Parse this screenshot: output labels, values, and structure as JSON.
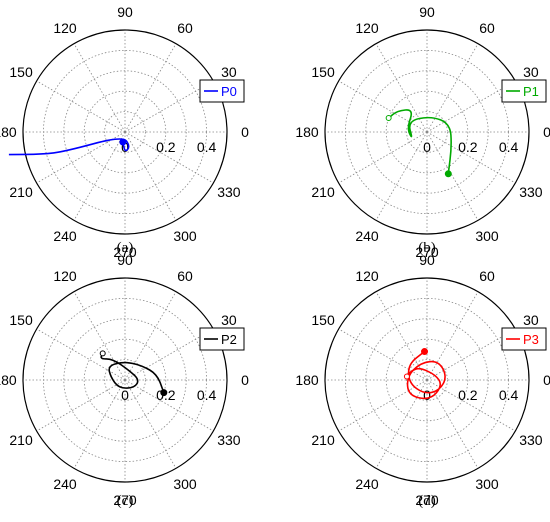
{
  "chart_data": [
    {
      "type": "polar",
      "panel_label": "(a)",
      "legend": "P0",
      "color": "#0000ff",
      "angle_ticks": [
        "0",
        "30",
        "60",
        "90",
        "120",
        "150",
        "180",
        "210",
        "240",
        "270",
        "300",
        "330"
      ],
      "radial_ticks": [
        "0",
        "0.2",
        "0.4"
      ],
      "rlim": [
        0,
        0.5
      ],
      "grid": true,
      "legend_position": "right",
      "start_marker": "filled",
      "series": [
        {
          "name": "P0",
          "points": [
            [
              258,
              0.05
            ],
            [
              270,
              0.1
            ],
            [
              290,
              0.075
            ],
            [
              240,
              0.022
            ],
            [
              198,
              0.31
            ],
            [
              195,
              0.42
            ],
            [
              191,
              0.58
            ]
          ]
        }
      ]
    },
    {
      "type": "polar",
      "panel_label": "(b)",
      "legend": "P1",
      "color": "#00aa00",
      "angle_ticks": [
        "0",
        "30",
        "60",
        "90",
        "120",
        "150",
        "180",
        "210",
        "240",
        "270",
        "300",
        "330"
      ],
      "radial_ticks": [
        "0",
        "0.2",
        "0.4"
      ],
      "rlim": [
        0,
        0.5
      ],
      "grid": true,
      "legend_position": "right",
      "start_marker": "filled",
      "end_marker": "open",
      "series": [
        {
          "name": "P1",
          "points": [
            [
              297,
              0.23
            ],
            [
              330,
              0.14
            ],
            [
              20,
              0.12
            ],
            [
              75,
              0.08
            ],
            [
              150,
              0.11
            ],
            [
              210,
              0.08
            ],
            [
              170,
              0.1
            ],
            [
              120,
              0.13
            ],
            [
              145,
              0.18
            ],
            [
              160,
              0.2
            ]
          ]
        }
      ]
    },
    {
      "type": "polar",
      "panel_label": "(c)",
      "legend": "P2",
      "color": "#000000",
      "angle_ticks": [
        "0",
        "30",
        "60",
        "90",
        "120",
        "150",
        "180",
        "210",
        "240",
        "270",
        "300",
        "330"
      ],
      "radial_ticks": [
        "0",
        "0.2",
        "0.4"
      ],
      "rlim": [
        0,
        0.5
      ],
      "grid": true,
      "legend_position": "right",
      "start_marker": "filled",
      "end_marker": "open",
      "series": [
        {
          "name": "P2",
          "points": [
            [
              342,
              0.2
            ],
            [
              10,
              0.16
            ],
            [
              40,
              0.11
            ],
            [
              90,
              0.09
            ],
            [
              140,
              0.11
            ],
            [
              170,
              0.07
            ],
            [
              235,
              0.05
            ],
            [
              320,
              0.06
            ],
            [
              0,
              0.07
            ],
            [
              60,
              0.05
            ],
            [
              120,
              0.12
            ],
            [
              140,
              0.16
            ],
            [
              130,
              0.17
            ]
          ]
        }
      ]
    },
    {
      "type": "polar",
      "panel_label": "(d)",
      "legend": "P3",
      "color": "#ff0000",
      "angle_ticks": [
        "0",
        "30",
        "60",
        "90",
        "120",
        "150",
        "180",
        "210",
        "240",
        "270",
        "300",
        "330"
      ],
      "radial_ticks": [
        "0",
        "0.2",
        "0.4"
      ],
      "rlim": [
        0,
        0.5
      ],
      "grid": true,
      "legend_position": "right",
      "start_marker": "filled",
      "end_marker": "open",
      "series": [
        {
          "name": "P3",
          "points": [
            [
              95,
              0.14
            ],
            [
              140,
              0.12
            ],
            [
              190,
              0.09
            ],
            [
              260,
              0.07
            ],
            [
              320,
              0.08
            ],
            [
              10,
              0.1
            ],
            [
              60,
              0.11
            ],
            [
              110,
              0.09
            ],
            [
              170,
              0.1
            ],
            [
              220,
              0.12
            ],
            [
              280,
              0.1
            ],
            [
              340,
              0.08
            ],
            [
              30,
              0.05
            ],
            [
              120,
              0.07
            ],
            [
              150,
              0.09
            ],
            [
              170,
              0.1
            ]
          ]
        }
      ]
    }
  ]
}
